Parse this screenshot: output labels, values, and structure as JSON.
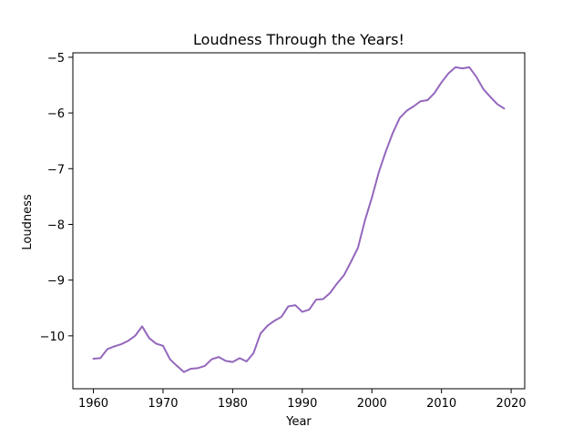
{
  "chart_data": {
    "type": "line",
    "title": "Loudness Through the Years!",
    "xlabel": "Year",
    "ylabel": "Loudness",
    "xlim": [
      1957.05,
      2021.95
    ],
    "ylim": [
      -10.95,
      -4.92
    ],
    "grid": false,
    "xticks": [
      1960,
      1970,
      1980,
      1990,
      2000,
      2010,
      2020
    ],
    "xtick_labels": [
      "1960",
      "1970",
      "1980",
      "1990",
      "2000",
      "2010",
      "2020"
    ],
    "yticks": [
      -10,
      -9,
      -8,
      -7,
      -6,
      -5
    ],
    "ytick_labels": [
      "−10",
      "−9",
      "−8",
      "−7",
      "−6",
      "−5"
    ],
    "series": [
      {
        "name": "loudness",
        "color": "#9467bd",
        "x": [
          1960,
          1961,
          1962,
          1963,
          1964,
          1965,
          1966,
          1967,
          1968,
          1969,
          1970,
          1971,
          1972,
          1973,
          1974,
          1975,
          1976,
          1977,
          1978,
          1979,
          1980,
          1981,
          1982,
          1983,
          1984,
          1985,
          1986,
          1987,
          1988,
          1989,
          1990,
          1991,
          1992,
          1993,
          1994,
          1995,
          1996,
          1997,
          1998,
          1999,
          2000,
          2001,
          2002,
          2003,
          2004,
          2005,
          2006,
          2007,
          2008,
          2009,
          2010,
          2011,
          2012,
          2013,
          2014,
          2015,
          2016,
          2017,
          2018,
          2019
        ],
        "values": [
          -10.41,
          -10.4,
          -10.24,
          -10.19,
          -10.15,
          -10.09,
          -10.0,
          -9.83,
          -10.04,
          -10.14,
          -10.18,
          -10.42,
          -10.54,
          -10.65,
          -10.59,
          -10.58,
          -10.54,
          -10.42,
          -10.38,
          -10.45,
          -10.47,
          -10.4,
          -10.46,
          -10.31,
          -9.96,
          -9.82,
          -9.73,
          -9.66,
          -9.47,
          -9.45,
          -9.57,
          -9.53,
          -9.35,
          -9.34,
          -9.23,
          -9.06,
          -8.91,
          -8.67,
          -8.42,
          -7.93,
          -7.52,
          -7.06,
          -6.69,
          -6.36,
          -6.09,
          -5.96,
          -5.88,
          -5.79,
          -5.77,
          -5.64,
          -5.45,
          -5.29,
          -5.18,
          -5.2,
          -5.18,
          -5.35,
          -5.57,
          -5.71,
          -5.84,
          -5.92
        ]
      }
    ]
  }
}
